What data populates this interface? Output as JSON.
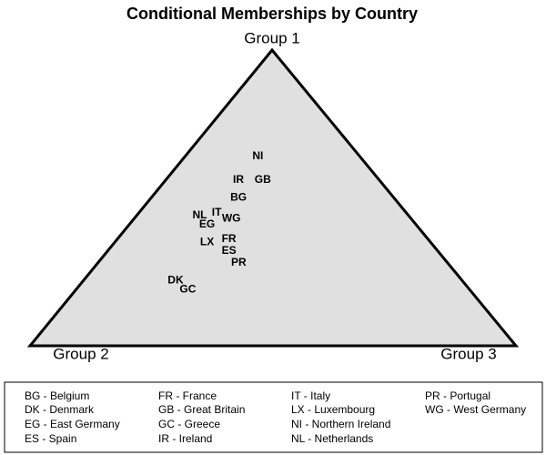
{
  "chart_data": {
    "type": "ternary",
    "title": "Conditional Memberships by Country",
    "axes": [
      "Group 1",
      "Group 2",
      "Group 3"
    ],
    "points": [
      {
        "label": "NI",
        "values": [
          0.64,
          0.21,
          0.15
        ]
      },
      {
        "label": "IR",
        "values": [
          0.56,
          0.29,
          0.15
        ]
      },
      {
        "label": "GB",
        "values": [
          0.56,
          0.24,
          0.2
        ]
      },
      {
        "label": "BG",
        "values": [
          0.5,
          0.32,
          0.18
        ]
      },
      {
        "label": "IT",
        "values": [
          0.45,
          0.39,
          0.16
        ]
      },
      {
        "label": "NL",
        "values": [
          0.44,
          0.43,
          0.13
        ]
      },
      {
        "label": "WG",
        "values": [
          0.43,
          0.37,
          0.2
        ]
      },
      {
        "label": "EG",
        "values": [
          0.41,
          0.43,
          0.16
        ]
      },
      {
        "label": "FR",
        "values": [
          0.36,
          0.41,
          0.23
        ]
      },
      {
        "label": "LX",
        "values": [
          0.35,
          0.46,
          0.19
        ]
      },
      {
        "label": "ES",
        "values": [
          0.32,
          0.43,
          0.25
        ]
      },
      {
        "label": "PR",
        "values": [
          0.28,
          0.43,
          0.29
        ]
      },
      {
        "label": "DK",
        "values": [
          0.22,
          0.59,
          0.19
        ]
      },
      {
        "label": "GC",
        "values": [
          0.19,
          0.58,
          0.23
        ]
      }
    ],
    "legend": [
      "BG - Belgium",
      "DK - Denmark",
      "EG - East Germany",
      "ES - Spain",
      "FR - France",
      "GB - Great Britain",
      "GC - Greece",
      "IR - Ireland",
      "IT - Italy",
      "LX - Luxembourg",
      "NI - Northern Ireland",
      "NL - Netherlands",
      "PR - Portugal",
      "WG - West Germany"
    ],
    "fill": "#e0e0e0"
  }
}
